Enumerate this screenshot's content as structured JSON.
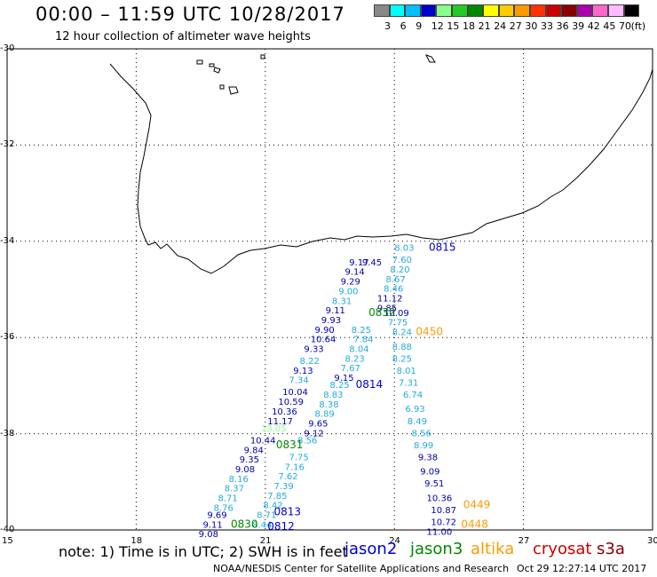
{
  "header": {
    "title": "00:00 – 11:59 UTC 10/28/2017",
    "subtitle": "12 hour collection of altimeter wave heights"
  },
  "legend": {
    "colors": [
      "#888888",
      "#00ffff",
      "#00bfff",
      "#0000cc",
      "#88ff88",
      "#22cc22",
      "#008800",
      "#ffff00",
      "#ffcc00",
      "#ff9900",
      "#ff3300",
      "#cc0000",
      "#880000",
      "#aa00aa",
      "#ff66cc",
      "#ffbbff",
      "#000000"
    ],
    "ticks": [
      "3",
      "6",
      "9",
      "12",
      "15",
      "18",
      "21",
      "24",
      "27",
      "30",
      "33",
      "36",
      "39",
      "42",
      "45",
      "70",
      "(ft)"
    ]
  },
  "axes": {
    "y_ticks": [
      "-30",
      "-32",
      "-34",
      "-36",
      "-38",
      "-40"
    ],
    "x_ticks": [
      "15",
      "18",
      "21",
      "24",
      "27",
      "30"
    ]
  },
  "passes": [
    {
      "label": "0815",
      "color": "#0000cc",
      "lat": -34.2,
      "lon": 24.8
    },
    {
      "label": "0832",
      "color": "#008800",
      "lat": -35.55,
      "lon": 23.4
    },
    {
      "label": "0450",
      "color": "#ff9900",
      "lat": -35.95,
      "lon": 24.5
    },
    {
      "label": "0814",
      "color": "#0000cc",
      "lat": -37.05,
      "lon": 23.1
    },
    {
      "label": "0831",
      "color": "#008800",
      "lat": -38.3,
      "lon": 21.25
    },
    {
      "label": "0813",
      "color": "#0000cc",
      "lat": -39.7,
      "lon": 21.2
    },
    {
      "label": "0830",
      "color": "#008800",
      "lat": -39.95,
      "lon": 20.2
    },
    {
      "label": "0812",
      "color": "#0000cc",
      "lat": -40.0,
      "lon": 21.05
    },
    {
      "label": "0449",
      "color": "#ff9900",
      "lat": -39.55,
      "lon": 25.6
    },
    {
      "label": "0448",
      "color": "#ff9900",
      "lat": -39.95,
      "lon": 25.55
    }
  ],
  "observations": [
    {
      "v": "8.03",
      "c": "#22aadd",
      "lat": -34.2,
      "lon": 24.0
    },
    {
      "v": "7.60",
      "c": "#22aadd",
      "lat": -34.45,
      "lon": 23.95
    },
    {
      "v": "8.20",
      "c": "#22aadd",
      "lat": -34.65,
      "lon": 23.9
    },
    {
      "v": "8.67",
      "c": "#22aadd",
      "lat": -34.85,
      "lon": 23.8
    },
    {
      "v": "8.46",
      "c": "#22aadd",
      "lat": -35.05,
      "lon": 23.75
    },
    {
      "v": "11.12",
      "c": "#0000aa",
      "lat": -35.25,
      "lon": 23.6
    },
    {
      "v": "9.85",
      "c": "#0000aa",
      "lat": -35.45,
      "lon": 23.6
    },
    {
      "v": "10.09",
      "c": "#0000aa",
      "lat": -35.55,
      "lon": 23.75
    },
    {
      "v": "7.75",
      "c": "#22aadd",
      "lat": -35.75,
      "lon": 23.85
    },
    {
      "v": "8.24",
      "c": "#22aadd",
      "lat": -35.95,
      "lon": 23.95
    },
    {
      "v": "8.88",
      "c": "#22aadd",
      "lat": -36.25,
      "lon": 23.95
    },
    {
      "v": "8.25",
      "c": "#22aadd",
      "lat": -36.5,
      "lon": 23.95
    },
    {
      "v": "8.01",
      "c": "#22aadd",
      "lat": -36.75,
      "lon": 24.05
    },
    {
      "v": "7.31",
      "c": "#22aadd",
      "lat": -37.0,
      "lon": 24.1
    },
    {
      "v": "6.74",
      "c": "#22aadd",
      "lat": -37.25,
      "lon": 24.2
    },
    {
      "v": "6.93",
      "c": "#22aadd",
      "lat": -37.55,
      "lon": 24.25
    },
    {
      "v": "8.49",
      "c": "#22aadd",
      "lat": -37.8,
      "lon": 24.3
    },
    {
      "v": "8.56",
      "c": "#22aadd",
      "lat": -38.05,
      "lon": 24.4
    },
    {
      "v": "8.99",
      "c": "#22aadd",
      "lat": -38.3,
      "lon": 24.45
    },
    {
      "v": "9.38",
      "c": "#0000aa",
      "lat": -38.55,
      "lon": 24.55
    },
    {
      "v": "9.09",
      "c": "#0000aa",
      "lat": -38.85,
      "lon": 24.6
    },
    {
      "v": "9.51",
      "c": "#0000aa",
      "lat": -39.1,
      "lon": 24.7
    },
    {
      "v": "10.36",
      "c": "#0000aa",
      "lat": -39.4,
      "lon": 24.75
    },
    {
      "v": "10.87",
      "c": "#0000aa",
      "lat": -39.65,
      "lon": 24.85
    },
    {
      "v": "10.72",
      "c": "#0000aa",
      "lat": -39.9,
      "lon": 24.85
    },
    {
      "v": "11.00",
      "c": "#0000aa",
      "lat": -40.1,
      "lon": 24.75
    },
    {
      "v": "9.17",
      "c": "#0000aa",
      "lat": -34.5,
      "lon": 22.95
    },
    {
      "v": "9.45",
      "c": "#0000aa",
      "lat": -34.5,
      "lon": 23.25
    },
    {
      "v": "9.14",
      "c": "#0000aa",
      "lat": -34.7,
      "lon": 22.85
    },
    {
      "v": "9.29",
      "c": "#0000aa",
      "lat": -34.9,
      "lon": 22.75
    },
    {
      "v": "9.00",
      "c": "#22aadd",
      "lat": -35.1,
      "lon": 22.7
    },
    {
      "v": "8.31",
      "c": "#22aadd",
      "lat": -35.3,
      "lon": 22.55
    },
    {
      "v": "9.11",
      "c": "#0000aa",
      "lat": -35.5,
      "lon": 22.4
    },
    {
      "v": "9.93",
      "c": "#0000aa",
      "lat": -35.7,
      "lon": 22.3
    },
    {
      "v": "9.90",
      "c": "#0000aa",
      "lat": -35.9,
      "lon": 22.15
    },
    {
      "v": "10.64",
      "c": "#0000aa",
      "lat": -36.1,
      "lon": 22.05
    },
    {
      "v": "9.33",
      "c": "#0000aa",
      "lat": -36.3,
      "lon": 21.9
    },
    {
      "v": "8.22",
      "c": "#22aadd",
      "lat": -36.55,
      "lon": 21.8
    },
    {
      "v": "9.13",
      "c": "#0000aa",
      "lat": -36.75,
      "lon": 21.65
    },
    {
      "v": "7.34",
      "c": "#22aadd",
      "lat": -36.95,
      "lon": 21.55
    },
    {
      "v": "10.04",
      "c": "#0000aa",
      "lat": -37.2,
      "lon": 21.4
    },
    {
      "v": "10.59",
      "c": "#0000aa",
      "lat": -37.4,
      "lon": 21.3
    },
    {
      "v": "10.36",
      "c": "#0000aa",
      "lat": -37.6,
      "lon": 21.15
    },
    {
      "v": "11.17",
      "c": "#0000aa",
      "lat": -37.8,
      "lon": 21.05
    },
    {
      "v": "13.05",
      "c": "#88ff88",
      "lat": -37.95,
      "lon": 20.9
    },
    {
      "v": "10.44",
      "c": "#0000aa",
      "lat": -38.2,
      "lon": 20.65
    },
    {
      "v": "9.84",
      "c": "#0000aa",
      "lat": -38.4,
      "lon": 20.5
    },
    {
      "v": "9.35",
      "c": "#0000aa",
      "lat": -38.6,
      "lon": 20.4
    },
    {
      "v": "9.08",
      "c": "#0000aa",
      "lat": -38.8,
      "lon": 20.3
    },
    {
      "v": "8.16",
      "c": "#22aadd",
      "lat": -39.0,
      "lon": 20.15
    },
    {
      "v": "8.37",
      "c": "#22aadd",
      "lat": -39.2,
      "lon": 20.05
    },
    {
      "v": "8.71",
      "c": "#22aadd",
      "lat": -39.4,
      "lon": 19.9
    },
    {
      "v": "8.76",
      "c": "#22aadd",
      "lat": -39.6,
      "lon": 19.8
    },
    {
      "v": "9.69",
      "c": "#0000aa",
      "lat": -39.75,
      "lon": 19.65
    },
    {
      "v": "9.11",
      "c": "#0000aa",
      "lat": -39.95,
      "lon": 19.55
    },
    {
      "v": "9.08",
      "c": "#0000aa",
      "lat": -40.15,
      "lon": 19.45
    },
    {
      "v": "8.25",
      "c": "#22aadd",
      "lat": -35.9,
      "lon": 23.0
    },
    {
      "v": "7.84",
      "c": "#22aadd",
      "lat": -36.1,
      "lon": 23.05
    },
    {
      "v": "8.04",
      "c": "#22aadd",
      "lat": -36.3,
      "lon": 22.95
    },
    {
      "v": "8.23",
      "c": "#22aadd",
      "lat": -36.5,
      "lon": 22.85
    },
    {
      "v": "7.67",
      "c": "#22aadd",
      "lat": -36.7,
      "lon": 22.75
    },
    {
      "v": "9.15",
      "c": "#0000aa",
      "lat": -36.9,
      "lon": 22.6
    },
    {
      "v": "8.25",
      "c": "#22aadd",
      "lat": -37.05,
      "lon": 22.5
    },
    {
      "v": "8.83",
      "c": "#22aadd",
      "lat": -37.25,
      "lon": 22.35
    },
    {
      "v": "8.38",
      "c": "#22aadd",
      "lat": -37.45,
      "lon": 22.25
    },
    {
      "v": "8.89",
      "c": "#22aadd",
      "lat": -37.65,
      "lon": 22.15
    },
    {
      "v": "9.65",
      "c": "#0000aa",
      "lat": -37.85,
      "lon": 22.0
    },
    {
      "v": "9.12",
      "c": "#0000aa",
      "lat": -38.05,
      "lon": 21.9
    },
    {
      "v": "8.56",
      "c": "#22aadd",
      "lat": -38.2,
      "lon": 21.75
    },
    {
      "v": "7.75",
      "c": "#22aadd",
      "lat": -38.55,
      "lon": 21.55
    },
    {
      "v": "7.16",
      "c": "#22aadd",
      "lat": -38.75,
      "lon": 21.45
    },
    {
      "v": "7.62",
      "c": "#22aadd",
      "lat": -38.95,
      "lon": 21.3
    },
    {
      "v": "7.39",
      "c": "#22aadd",
      "lat": -39.15,
      "lon": 21.2
    },
    {
      "v": "7.85",
      "c": "#22aadd",
      "lat": -39.35,
      "lon": 21.05
    },
    {
      "v": "8.42",
      "c": "#22aadd",
      "lat": -39.55,
      "lon": 20.95
    },
    {
      "v": "8.71",
      "c": "#22aadd",
      "lat": -39.75,
      "lon": 20.8
    },
    {
      "v": "8.44",
      "c": "#22aadd",
      "lat": -39.95,
      "lon": 20.7
    }
  ],
  "note": "note: 1) Time is in UTC; 2) SWH is in feet",
  "satellites": [
    {
      "name": "jason2",
      "color": "#0000cc"
    },
    {
      "name": "jason3",
      "color": "#008800"
    },
    {
      "name": "altika",
      "color": "#ff9900"
    },
    {
      "name": "cryosat",
      "color": "#cc0000"
    },
    {
      "name": "s3a",
      "color": "#880000"
    }
  ],
  "footer": {
    "credit": "NOAA/NESDIS Center for Satellite Applications and Research",
    "timestamp": "Oct 29 12:27:14 UTC 2017"
  }
}
